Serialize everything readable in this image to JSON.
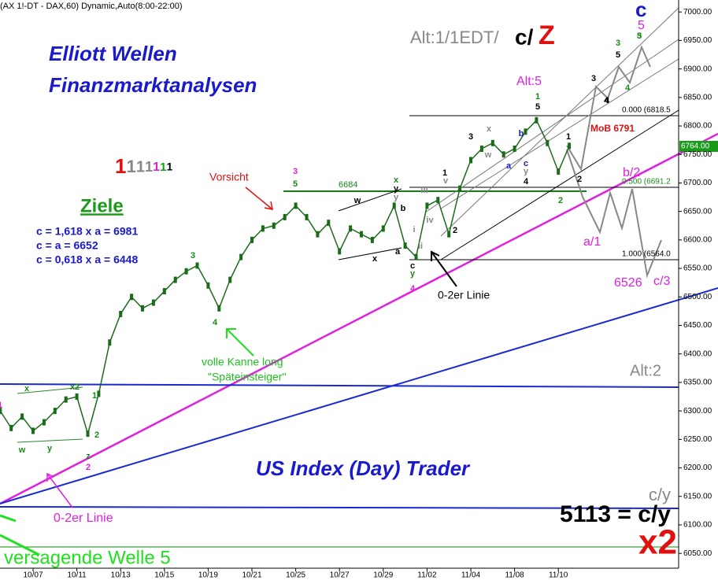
{
  "chart_data": {
    "type": "line",
    "header": "(AX 1!-DT - DAX,60) Dynamic,Auto(8:00-22:00)",
    "categories": [
      null,
      null,
      null,
      "10/07",
      null,
      null,
      null,
      "10/11",
      null,
      null,
      null,
      "10/13",
      null,
      null,
      null,
      "10/15",
      null,
      null,
      null,
      "10/19",
      null,
      null,
      null,
      "10/21",
      null,
      null,
      null,
      "10/25",
      null,
      null,
      null,
      "10/27",
      null,
      null,
      null,
      "10/29",
      null,
      null,
      null,
      "11/02",
      null,
      null,
      null,
      "11/04",
      null,
      null,
      null,
      "11/08",
      null,
      null,
      null,
      "11/10",
      null
    ],
    "values": [
      6300,
      6270,
      6290,
      6265,
      6280,
      6300,
      6320,
      6325,
      6260,
      6330,
      6420,
      6470,
      6500,
      6480,
      6490,
      6510,
      6530,
      6545,
      6555,
      6520,
      6480,
      6530,
      6570,
      6600,
      6620,
      6625,
      6640,
      6660,
      6640,
      6610,
      6630,
      6580,
      6620,
      6610,
      6600,
      6620,
      6660,
      6590,
      6570,
      6660,
      6670,
      6610,
      6690,
      6740,
      6760,
      6770,
      6750,
      6760,
      6790,
      6810,
      6770,
      6720,
      6765
    ],
    "color": "#1a6b1a",
    "ylim": [
      6024,
      7021
    ],
    "yticks": [
      {
        "value": 6050,
        "label": "6050.00"
      },
      {
        "value": 6100,
        "label": "6100.00"
      },
      {
        "value": 6150,
        "label": "6150.00"
      },
      {
        "value": 6200,
        "label": "6200.00"
      },
      {
        "value": 6250,
        "label": "6250.00"
      },
      {
        "value": 6300,
        "label": "6300.00"
      },
      {
        "value": 6350,
        "label": "6350.00"
      },
      {
        "value": 6400,
        "label": "6400.00"
      },
      {
        "value": 6450,
        "label": "6450.00"
      },
      {
        "value": 6500,
        "label": "6500.00"
      },
      {
        "value": 6550,
        "label": "6550.00"
      },
      {
        "value": 6600,
        "label": "6600.00"
      },
      {
        "value": 6650,
        "label": "6650.00"
      },
      {
        "value": 6700,
        "label": "6700.00"
      },
      {
        "value": 6750,
        "label": "6750.00"
      },
      {
        "value": 6800,
        "label": "6800.00"
      },
      {
        "value": 6850,
        "label": "6850.00"
      },
      {
        "value": 6900,
        "label": "6900.00"
      },
      {
        "value": 6950,
        "label": "6950.00"
      },
      {
        "value": 7000,
        "label": "7000.00"
      }
    ],
    "annotations": [
      "Elliott Wellen",
      "Finanzmarktanalysen",
      "Ziele",
      "c = 1,618 x a = 6981",
      "c = a = 6652",
      "c = 0,618 x a = 6448",
      "US Index (Day) Trader",
      "5113 = c/y",
      "c/y",
      "x2",
      "versagende Welle 5",
      "0-2er Linie",
      "0-2er Linie",
      "volle Kanne long",
      "\"Späteinsteiger\"",
      "Vorsicht",
      "Alt:1/1EDT/",
      "c/",
      "Z",
      "c",
      "5",
      "Alt:5",
      "MoB 6791",
      "0.000 (6818.5",
      "0.500 (6691.2",
      "1.000 (6564.0",
      "6764.00",
      "b/2",
      "a/1",
      "6526",
      "c/3",
      "Alt:2",
      "6684"
    ],
    "degree_ones": [
      "1",
      "1",
      "1",
      "1",
      "1",
      "1",
      "1"
    ],
    "wave_labels": [
      "1",
      "x",
      "x2",
      "1",
      "w",
      "y",
      "2",
      "z",
      "2",
      "3",
      "4",
      "3",
      "5",
      "w",
      "x",
      "a",
      "b",
      "y",
      "x",
      "c",
      "y",
      "4",
      "i",
      "ii",
      "iii",
      "iv",
      "v",
      "y",
      "1",
      "2",
      "3",
      "w",
      "x",
      "a",
      "b",
      "c",
      "y",
      "4",
      "1",
      "5",
      "1",
      "2",
      "2",
      "3",
      "4",
      "3",
      "4",
      "5",
      "3",
      "4",
      "5"
    ]
  }
}
